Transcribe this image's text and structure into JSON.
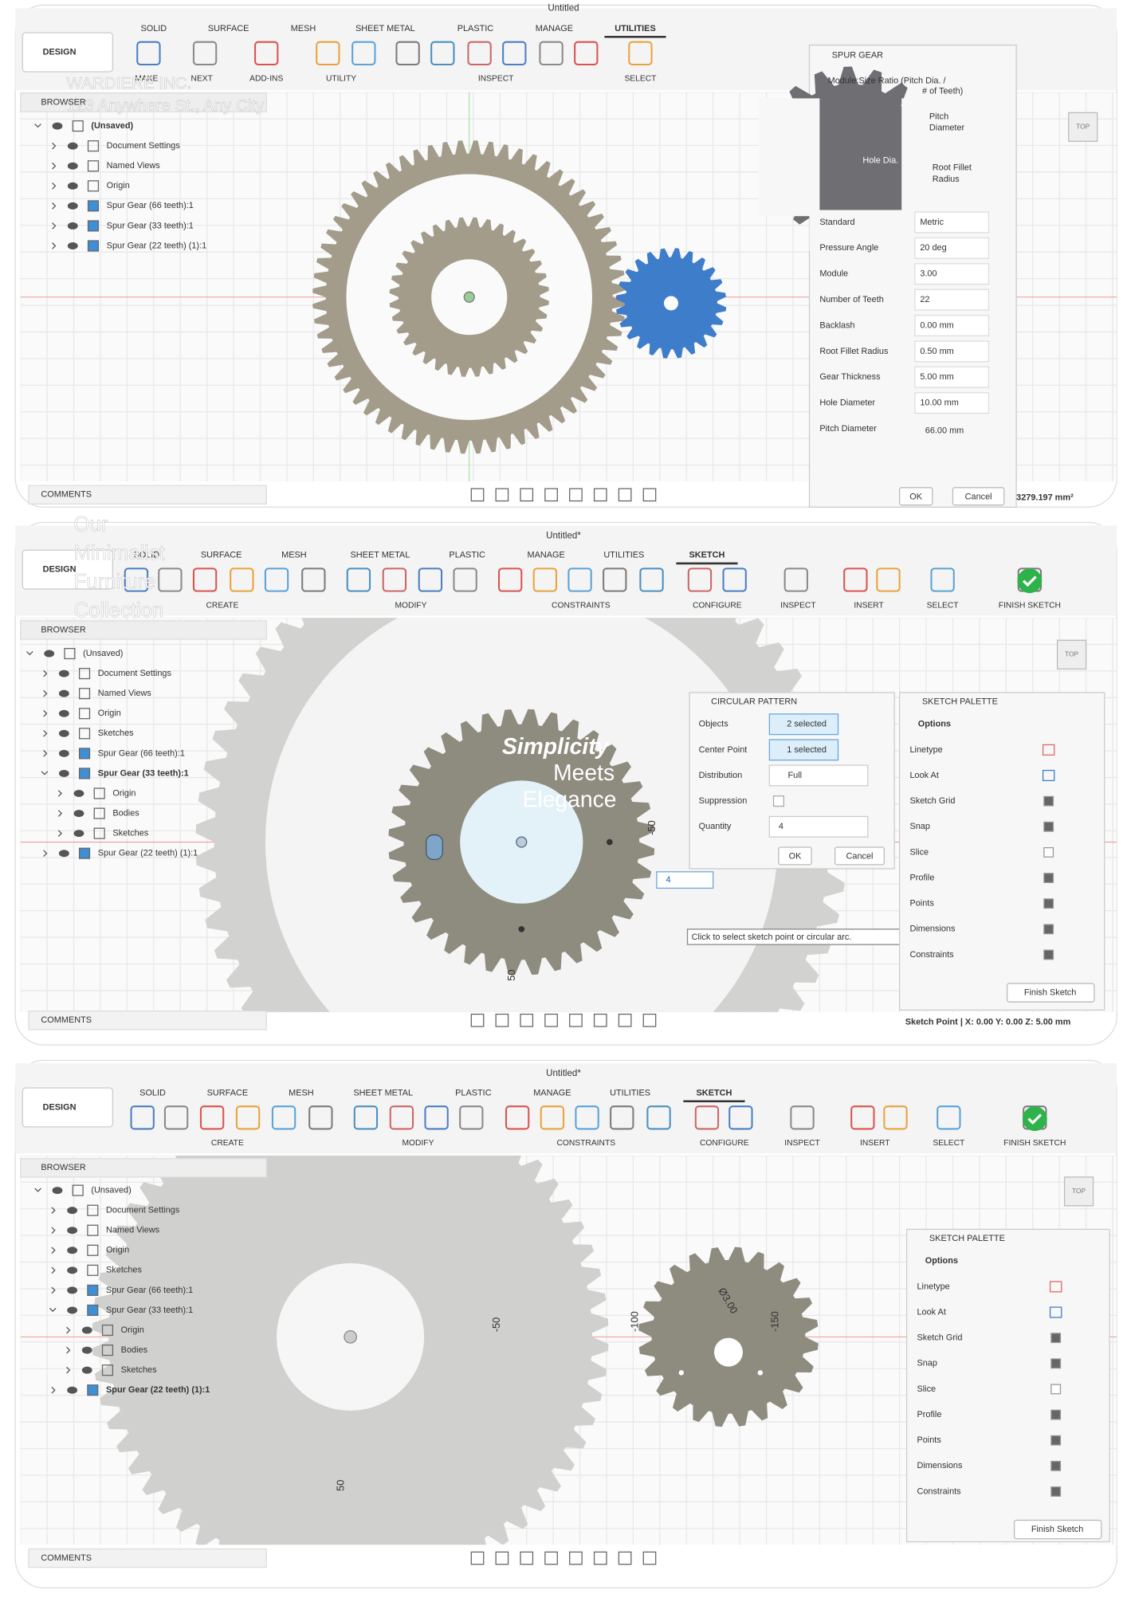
{
  "panels": [
    {
      "title": "Untitled",
      "tabs": [
        "SOLID",
        "SURFACE",
        "MESH",
        "SHEET METAL",
        "PLASTIC",
        "MANAGE",
        "UTILITIES"
      ],
      "workspace": "DESIGN",
      "toolbar": [
        "MAKE",
        "NEXT",
        "ADD-INS",
        "UTILITY",
        "INSPECT",
        "SELECT"
      ],
      "browser": {
        "title": "BROWSER",
        "tree": [
          {
            "label": "(Unsaved)",
            "active": true,
            "children": [
              {
                "label": "Document Settings"
              },
              {
                "label": "Named Views"
              },
              {
                "label": "Origin"
              },
              {
                "label": "Spur Gear (66 teeth):1"
              },
              {
                "label": "Spur Gear (33 teeth):1"
              },
              {
                "label": "Spur Gear (22 teeth) (1):1"
              }
            ]
          }
        ]
      },
      "comments": "COMMENTS",
      "view_cube": "TOP",
      "watermark": [
        "WARDIERE INC.",
        "123 Anywhere St., Any City"
      ],
      "spur_gear": {
        "title": "SPUR GEAR",
        "caption": [
          "Module:Size Ratio (Pitch Dia. /",
          "# of Teeth)"
        ],
        "diagram_labels": [
          [
            "Pitch",
            "Diameter"
          ],
          [
            "Hole Dia."
          ],
          [
            "Root Fillet",
            "Radius"
          ]
        ],
        "fields": [
          {
            "label": "Standard",
            "value": "Metric"
          },
          {
            "label": "Pressure Angle",
            "value": "20 deg"
          },
          {
            "label": "Module",
            "value": "3.00"
          },
          {
            "label": "Number of Teeth",
            "value": "22"
          },
          {
            "label": "Backlash",
            "value": "0.00 mm"
          },
          {
            "label": "Root Fillet Radius",
            "value": "0.50 mm"
          },
          {
            "label": "Gear Thickness",
            "value": "5.00 mm"
          },
          {
            "label": "Hole Diameter",
            "value": "10.00 mm"
          },
          {
            "label": "Pitch Diameter",
            "value": "66.00 mm"
          }
        ],
        "buttons": [
          "OK",
          "Cancel"
        ]
      },
      "status": "3279.197 mm²"
    },
    {
      "title": "Untitled*",
      "tabs": [
        "SOLID",
        "SURFACE",
        "MESH",
        "SHEET METAL",
        "PLASTIC",
        "MANAGE",
        "UTILITIES",
        "SKETCH"
      ],
      "workspace": "DESIGN",
      "toolbar": [
        "CREATE",
        "MODIFY",
        "CONSTRAINTS",
        "CONFIGURE",
        "INSPECT",
        "INSERT",
        "SELECT",
        "FINISH SKETCH"
      ],
      "browser": {
        "title": "BROWSER",
        "tree": [
          {
            "label": "(Unsaved)",
            "children": [
              {
                "label": "Document Settings"
              },
              {
                "label": "Named Views"
              },
              {
                "label": "Origin"
              },
              {
                "label": "Sketches"
              },
              {
                "label": "Spur Gear (66 teeth):1"
              },
              {
                "label": "Spur Gear (33 teeth):1",
                "active": true,
                "children": [
                  {
                    "label": "Origin"
                  },
                  {
                    "label": "Bodies"
                  },
                  {
                    "label": "Sketches"
                  }
                ]
              },
              {
                "label": "Spur Gear (22 teeth) (1):1"
              }
            ]
          }
        ]
      },
      "comments": "COMMENTS",
      "view_cube": "TOP",
      "watermark": [
        "Our",
        "Minimalist",
        "Furniture",
        "Collection"
      ],
      "headline": [
        "Simplicity",
        "Meets",
        "Elegance"
      ],
      "dimensions": [
        "-50",
        "50"
      ],
      "circular_pattern": {
        "title": "CIRCULAR PATTERN",
        "rows": [
          {
            "label": "Objects",
            "value": "2 selected"
          },
          {
            "label": "Center Point",
            "value": "1 selected"
          },
          {
            "label": "Distribution",
            "value": "Full"
          },
          {
            "label": "Suppression",
            "checked": false
          },
          {
            "label": "Quantity",
            "value": "4"
          }
        ],
        "buttons": [
          "OK",
          "Cancel"
        ],
        "quantity_input": "4",
        "tooltip": "Click to select sketch point or circular arc."
      },
      "palette": {
        "title": "SKETCH PALETTE",
        "section": "Options",
        "options": [
          {
            "label": "Linetype"
          },
          {
            "label": "Look At"
          },
          {
            "label": "Sketch Grid",
            "checked": true
          },
          {
            "label": "Snap",
            "checked": true
          },
          {
            "label": "Slice",
            "checked": false
          },
          {
            "label": "Profile",
            "checked": true
          },
          {
            "label": "Points",
            "checked": true
          },
          {
            "label": "Dimensions",
            "checked": true
          },
          {
            "label": "Constraints",
            "checked": true
          }
        ],
        "button": "Finish Sketch"
      },
      "status": "Sketch Point | X: 0.00 Y: 0.00 Z: 5.00 mm"
    },
    {
      "title": "Untitled*",
      "tabs": [
        "SOLID",
        "SURFACE",
        "MESH",
        "SHEET METAL",
        "PLASTIC",
        "MANAGE",
        "UTILITIES",
        "SKETCH"
      ],
      "workspace": "DESIGN",
      "toolbar": [
        "CREATE",
        "MODIFY",
        "CONSTRAINTS",
        "CONFIGURE",
        "INSPECT",
        "INSERT",
        "SELECT",
        "FINISH SKETCH"
      ],
      "browser": {
        "title": "BROWSER",
        "tree": [
          {
            "label": "(Unsaved)",
            "children": [
              {
                "label": "Document Settings"
              },
              {
                "label": "Named Views"
              },
              {
                "label": "Origin"
              },
              {
                "label": "Sketches"
              },
              {
                "label": "Spur Gear (66 teeth):1"
              },
              {
                "label": "Spur Gear (33 teeth):1",
                "children": [
                  {
                    "label": "Origin"
                  },
                  {
                    "label": "Bodies"
                  },
                  {
                    "label": "Sketches"
                  }
                ]
              },
              {
                "label": "Spur Gear (22 teeth) (1):1",
                "active": true
              }
            ]
          }
        ]
      },
      "comments": "COMMENTS",
      "view_cube": "TOP",
      "dimensions": [
        "-50",
        "50",
        "-100",
        "-150",
        "Ø3.00"
      ],
      "palette": {
        "title": "SKETCH PALETTE",
        "section": "Options",
        "options": [
          {
            "label": "Linetype"
          },
          {
            "label": "Look At"
          },
          {
            "label": "Sketch Grid",
            "checked": true
          },
          {
            "label": "Snap",
            "checked": true
          },
          {
            "label": "Slice",
            "checked": false
          },
          {
            "label": "Profile",
            "checked": true
          },
          {
            "label": "Points",
            "checked": true
          },
          {
            "label": "Dimensions",
            "checked": true
          },
          {
            "label": "Constraints",
            "checked": true
          }
        ],
        "button": "Finish Sketch"
      }
    }
  ]
}
